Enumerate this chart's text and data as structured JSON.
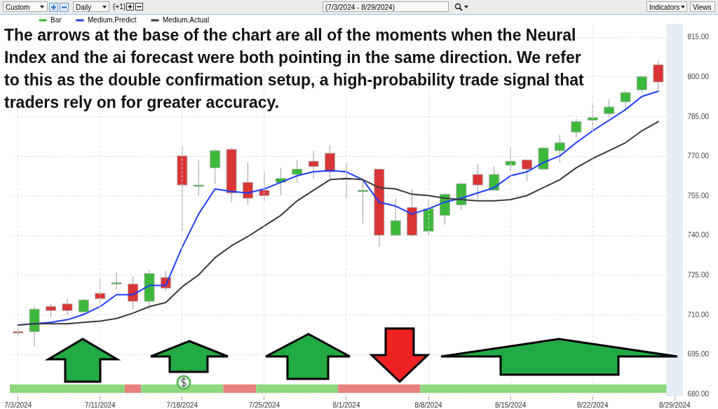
{
  "chart_data": {
    "type": "candlestick",
    "title": "The arrows at the base of the chart are all of the moments when the Neural Index and the ai forecast were both pointing in the same direction.  We refer to this as the double confirmation setup, a high-probability trade signal that traders rely on for greater accuracy.",
    "annotations": [
      "Custom",
      "Daily",
      "(+1)",
      "(7/3/2024 - 8/29/2024)",
      "Indicators",
      "Views"
    ],
    "categories": [
      "7/3/2024",
      null,
      null,
      null,
      null,
      "7/11/2024",
      null,
      null,
      null,
      null,
      "7/18/2024",
      null,
      null,
      null,
      null,
      "7/25/2024",
      null,
      null,
      null,
      null,
      "8/1/2024",
      null,
      null,
      null,
      null,
      "8/8/2024",
      null,
      null,
      null,
      null,
      "8/15/2024",
      null,
      null,
      null,
      null,
      "8/22/2024",
      null,
      null,
      null,
      null,
      "8/29/2024"
    ],
    "series": [
      {
        "type": "candlestick",
        "name": "Bar",
        "color": "#3cb83a",
        "ohlc": [
          [
            703.5,
            705,
            702,
            703
          ],
          [
            703.5,
            713,
            698,
            712
          ],
          [
            713,
            714,
            709,
            711.5
          ],
          [
            714,
            716,
            710,
            711.5
          ],
          [
            711,
            716,
            710,
            715.5
          ],
          [
            718,
            723.5,
            714,
            716
          ],
          [
            721.5,
            726,
            719.5,
            722
          ],
          [
            721.5,
            724.5,
            712,
            715
          ],
          [
            715,
            727,
            712,
            725.5
          ],
          [
            724,
            726.5,
            719,
            720
          ],
          [
            770,
            774,
            741.5,
            759
          ],
          [
            758.5,
            768.5,
            755,
            759
          ],
          [
            765.5,
            772.5,
            759.5,
            772
          ],
          [
            772.5,
            773,
            752.5,
            756
          ],
          [
            760,
            767.5,
            751.5,
            754
          ],
          [
            757,
            764,
            753,
            755
          ],
          [
            760,
            765.5,
            755,
            761.5
          ],
          [
            763,
            768.5,
            760,
            765
          ],
          [
            768,
            772,
            761.5,
            766
          ],
          [
            771,
            774,
            761.5,
            764
          ],
          [
            761,
            767.5,
            754,
            761.5
          ],
          [
            756.5,
            761,
            744.5,
            757
          ],
          [
            765,
            765,
            735.5,
            740
          ],
          [
            740,
            754,
            740,
            745.5
          ],
          [
            750.5,
            757.5,
            739.5,
            740
          ],
          [
            741.5,
            753.5,
            740,
            750
          ],
          [
            747.5,
            756,
            744,
            755.5
          ],
          [
            751.5,
            760,
            749.5,
            759.5
          ],
          [
            763,
            767,
            753.5,
            759
          ],
          [
            757,
            766,
            757,
            763
          ],
          [
            766.5,
            773,
            764,
            768
          ],
          [
            768.5,
            768.5,
            760.5,
            765
          ],
          [
            765,
            773.5,
            765,
            773
          ],
          [
            772,
            778,
            767.5,
            775
          ],
          [
            779,
            784,
            777,
            783
          ],
          [
            783.5,
            790,
            779.5,
            784.5
          ],
          [
            786,
            791.5,
            784.5,
            788.5
          ],
          [
            790.5,
            795,
            787.5,
            794
          ],
          [
            795,
            800,
            794,
            800
          ],
          [
            804.5,
            806,
            795,
            798
          ],
          null
        ],
        "colors": [
          "#d93535",
          "#3cb83a",
          "#d93535",
          "#d93535",
          "#3cb83a",
          "#d93535",
          "#3cb83a",
          "#d93535",
          "#3cb83a",
          "#d93535",
          "#d93535",
          "#3cb83a",
          "#3cb83a",
          "#d93535",
          "#d93535",
          "#d93535",
          "#3cb83a",
          "#3cb83a",
          "#d93535",
          "#d93535",
          "#3cb83a",
          "#3cb83a",
          "#d93535",
          "#3cb83a",
          "#d93535",
          "#3cb83a",
          "#3cb83a",
          "#3cb83a",
          "#d93535",
          "#3cb83a",
          "#3cb83a",
          "#d93535",
          "#3cb83a",
          "#3cb83a",
          "#3cb83a",
          "#3cb83a",
          "#3cb83a",
          "#3cb83a",
          "#3cb83a",
          "#d93535",
          null
        ]
      },
      {
        "type": "line",
        "name": "Medium.Predict",
        "color": "#1f3cff",
        "values": [
          706,
          706.5,
          707,
          708,
          710,
          713,
          717.5,
          717.5,
          721,
          721,
          735.5,
          748,
          757.5,
          756.5,
          756,
          757.5,
          760,
          762.5,
          764,
          764.5,
          764,
          761,
          752.5,
          751,
          748,
          750,
          752.5,
          754,
          756,
          758,
          762.5,
          764,
          767.5,
          770,
          775,
          779.5,
          783.5,
          787.5,
          792.5,
          794.5,
          null
        ]
      },
      {
        "type": "line",
        "name": "Medium.Actual",
        "color": "#3a3a3a",
        "values": [
          706,
          706.5,
          706.5,
          706.5,
          707,
          707.5,
          708.5,
          710.5,
          713,
          714.5,
          720.5,
          725,
          731.5,
          736,
          739.5,
          743.5,
          747.5,
          753,
          757,
          761,
          761.5,
          761,
          758,
          757.5,
          755.5,
          755,
          754,
          753.5,
          753,
          753,
          753.5,
          755,
          758,
          761,
          765.5,
          769,
          772,
          775,
          779.5,
          783,
          null
        ]
      }
    ],
    "bands": [
      {
        "axis": "x",
        "from": "8/29/2024",
        "to": "8/29/2024",
        "color": "#e6edf7"
      }
    ],
    "ylim": [
      679,
      820
    ],
    "yticks": [
      {
        "value": 680,
        "label": "680.00"
      },
      {
        "value": 695,
        "label": "695.00"
      },
      {
        "value": 710,
        "label": "710.00"
      },
      {
        "value": 725,
        "label": "725.00"
      },
      {
        "value": 740,
        "label": "740.00"
      },
      {
        "value": 755,
        "label": "755.00"
      },
      {
        "value": 770,
        "label": "770.00"
      },
      {
        "value": 785,
        "label": "785.00"
      },
      {
        "value": 800,
        "label": "800.00"
      },
      {
        "value": 815,
        "label": "815.00"
      }
    ],
    "grid": true,
    "legend": "top left"
  }
}
